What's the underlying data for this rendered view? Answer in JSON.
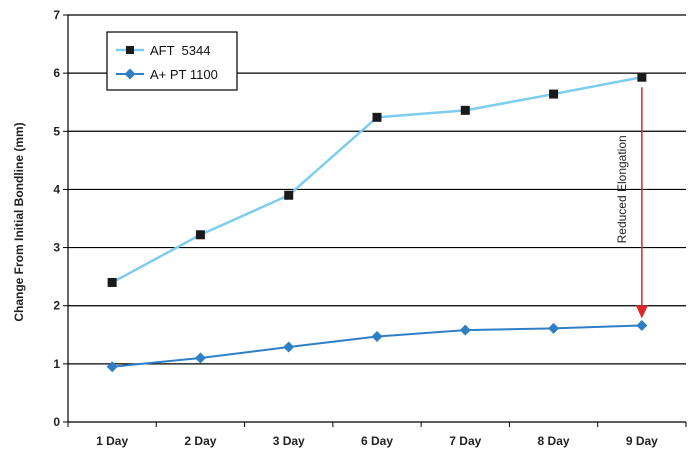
{
  "chart_data": {
    "type": "line",
    "categories": [
      "1 Day",
      "2 Day",
      "3 Day",
      "6 Day",
      "7 Day",
      "8 Day",
      "9 Day"
    ],
    "series": [
      {
        "name": "AFT  5344",
        "values": [
          2.4,
          3.22,
          3.9,
          5.24,
          5.36,
          5.64,
          5.93
        ],
        "color": "#7fcdee",
        "marker": "square",
        "marker_color": "#1a1a1a"
      },
      {
        "name": "A+ PT 1100",
        "values": [
          0.95,
          1.1,
          1.29,
          1.47,
          1.58,
          1.61,
          1.66
        ],
        "color": "#2f7fc6",
        "marker": "diamond",
        "marker_color": "#2f7fc6"
      }
    ],
    "ylabel": "Change From Initial Bondline (mm)",
    "xlabel": "",
    "ylim": [
      0,
      7
    ],
    "yticks": [
      0,
      1,
      2,
      3,
      4,
      5,
      6,
      7
    ],
    "grid": "horizontal",
    "legend_position": "top-left",
    "annotation": {
      "text": "Reduced Elongation",
      "category": "9 Day",
      "from": 5.93,
      "to": 1.66,
      "color": "#e0262a"
    }
  }
}
